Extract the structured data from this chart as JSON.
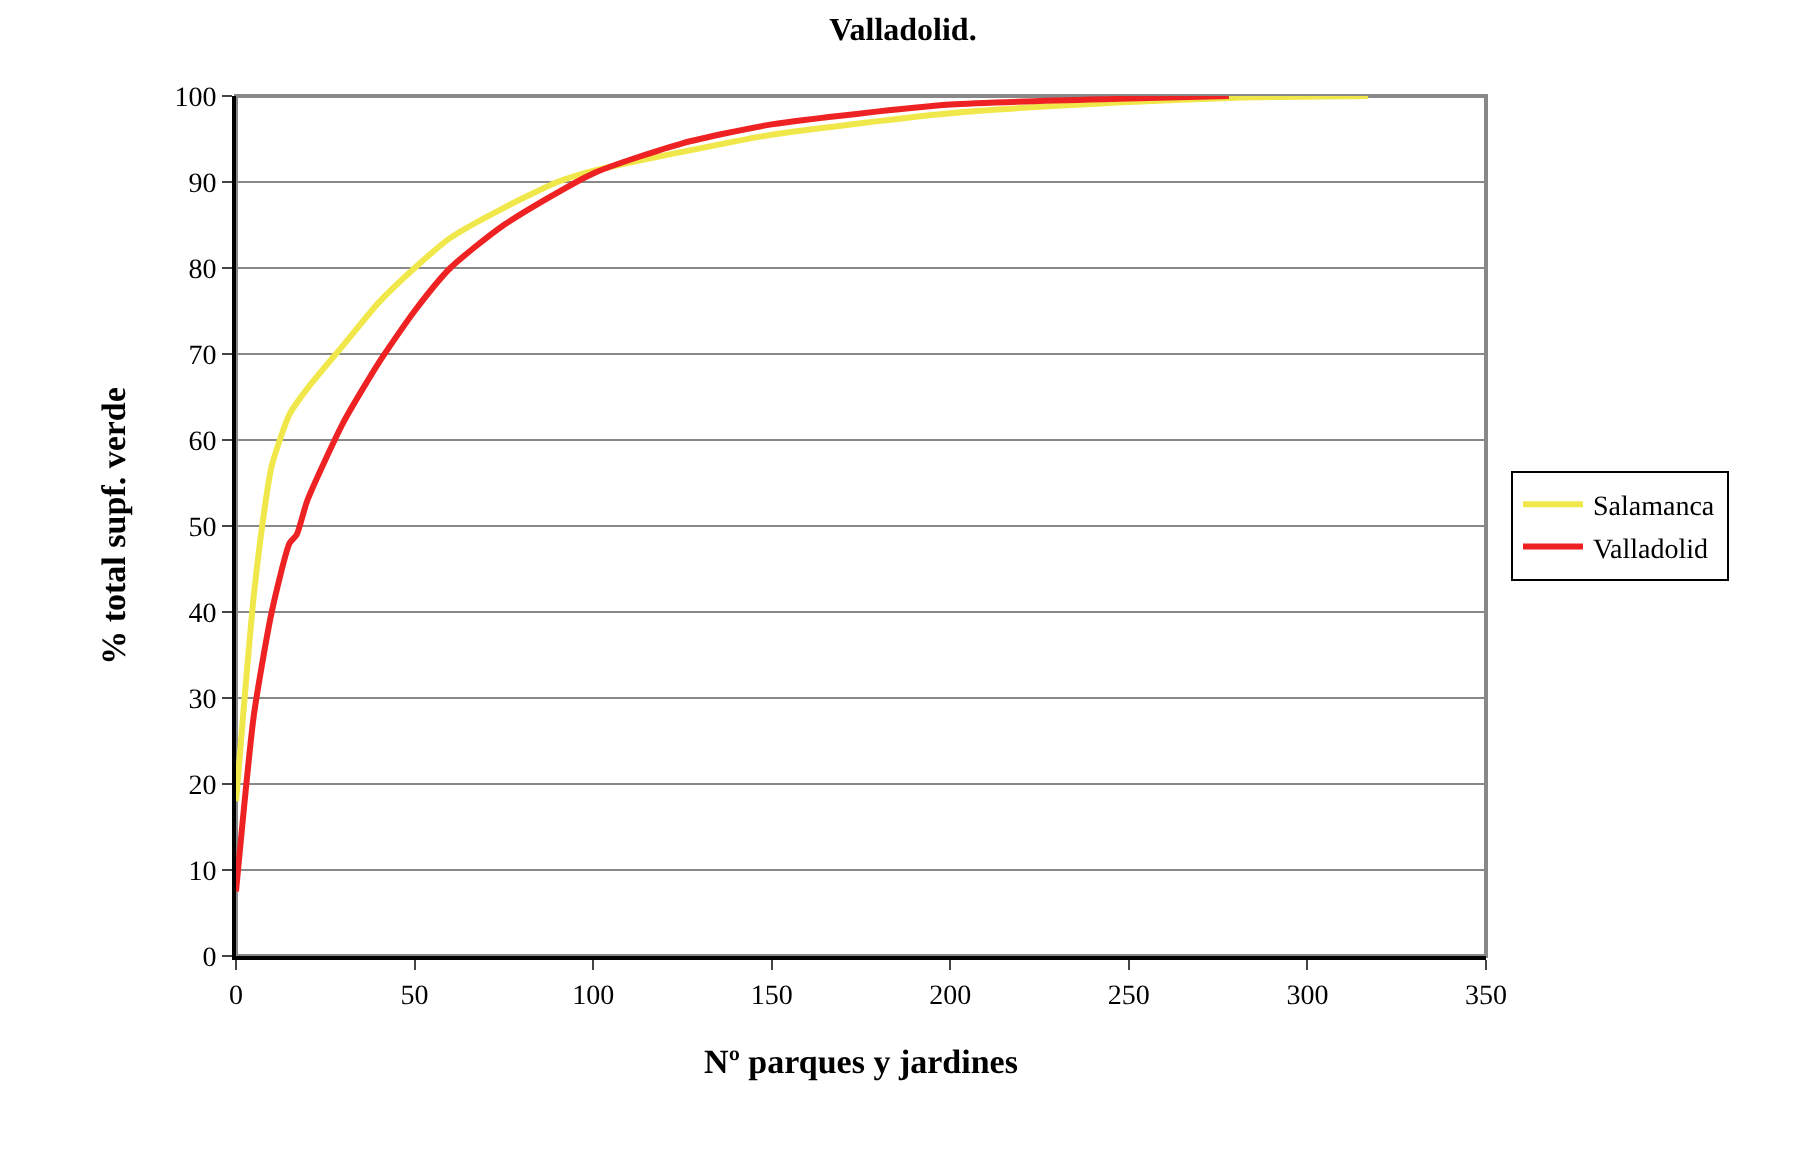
{
  "chart_data": {
    "type": "line",
    "title": "Valladolid.",
    "xlabel": "Nº parques y jardines",
    "ylabel": "% total supf. verde",
    "xlim": [
      0,
      350
    ],
    "xticks": [
      0,
      50,
      100,
      150,
      200,
      250,
      300,
      350
    ],
    "ylim": [
      0,
      100
    ],
    "yticks": [
      0,
      10,
      20,
      30,
      40,
      50,
      60,
      70,
      80,
      90,
      100
    ],
    "grid": "y",
    "legend": "right",
    "line_style": "solid",
    "marker": "none",
    "series": [
      {
        "name": "Salamanca",
        "color": "#f0e84a",
        "x": [
          0,
          2,
          5,
          8,
          10,
          15,
          20,
          30,
          40,
          50,
          60,
          75,
          90,
          100,
          125,
          150,
          200,
          250,
          280,
          317
        ],
        "values": [
          18,
          28,
          42,
          52,
          57,
          63,
          66,
          71,
          76,
          80,
          83.5,
          87,
          90,
          91.3,
          93.5,
          95.5,
          98,
          99.3,
          99.8,
          100
        ]
      },
      {
        "name": "Valladolid",
        "color": "#ee2222",
        "x": [
          0,
          5,
          10,
          15,
          17,
          20,
          30,
          40,
          50,
          60,
          75,
          100,
          125,
          150,
          200,
          250,
          278
        ],
        "values": [
          7.5,
          28,
          40,
          48,
          49,
          53,
          62,
          69,
          75,
          80,
          85,
          91,
          94.5,
          96.7,
          99,
          99.7,
          100
        ]
      }
    ]
  }
}
